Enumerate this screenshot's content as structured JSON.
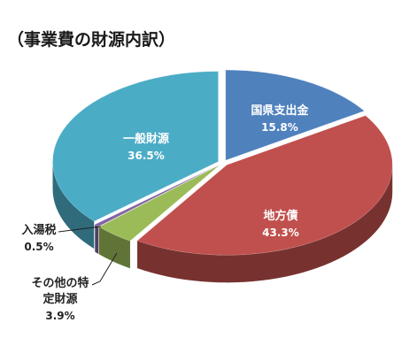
{
  "chart_data": {
    "type": "pie",
    "style": "3d-exploded",
    "title": "（事業費の財源内訳）",
    "slices": [
      {
        "name": "国県支出金",
        "label": "15.8%",
        "value": 15.8,
        "color": "#4f81bd"
      },
      {
        "name": "地方債",
        "label": "43.3%",
        "value": 43.3,
        "color": "#c0504d"
      },
      {
        "name": "その他の特定財源",
        "name_lines": [
          "その他の特",
          "定財源"
        ],
        "label": "3.9%",
        "value": 3.9,
        "color": "#9bbb59"
      },
      {
        "name": "入湯税",
        "label": "0.5%",
        "value": 0.5,
        "color": "#8064a2"
      },
      {
        "name": "一般財源",
        "label": "36.5%",
        "value": 36.5,
        "color": "#4bacc6"
      }
    ]
  }
}
